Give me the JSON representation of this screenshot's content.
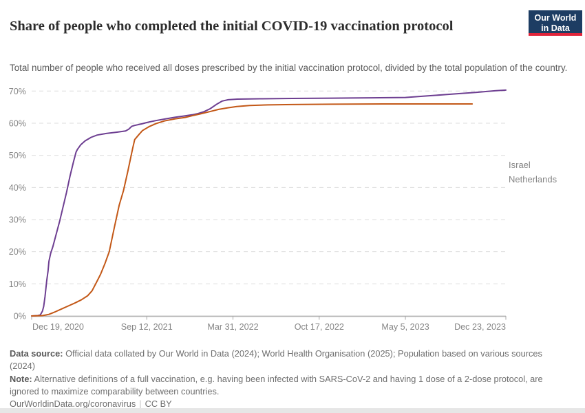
{
  "header": {
    "title": "Share of people who completed the initial COVID-19 vaccination protocol",
    "subtitle": "Total number of people who received all doses prescribed by the initial vaccination protocol, divided by the total population of the country.",
    "logo": {
      "line1": "Our World",
      "line2": "in Data",
      "bg_color": "#1d3d63",
      "accent_color": "#e0243a"
    }
  },
  "chart_data": {
    "type": "line",
    "title": "Share of people who completed the initial COVID-19 vaccination protocol",
    "grid": "dashed-horizontal",
    "legend_position": "right-of-line-ends",
    "x_axis": {
      "start_date": "Dec 19, 2020",
      "end_date": "Dec 23, 2023",
      "total_days": 1100,
      "ticks": [
        {
          "label": "Dec 19, 2020",
          "day": 0
        },
        {
          "label": "Sep 12, 2021",
          "day": 267
        },
        {
          "label": "Mar 31, 2022",
          "day": 467
        },
        {
          "label": "Oct 17, 2022",
          "day": 667
        },
        {
          "label": "May 5, 2023",
          "day": 867
        },
        {
          "label": "Dec 23, 2023",
          "day": 1100
        }
      ]
    },
    "y_axis": {
      "min": 0,
      "max": 70,
      "unit": "%",
      "ticks": [
        {
          "value": 0,
          "label": "0%"
        },
        {
          "value": 10,
          "label": "10%"
        },
        {
          "value": 20,
          "label": "20%"
        },
        {
          "value": 30,
          "label": "30%"
        },
        {
          "value": 40,
          "label": "40%"
        },
        {
          "value": 50,
          "label": "50%"
        },
        {
          "value": 60,
          "label": "60%"
        },
        {
          "value": 70,
          "label": "70%"
        }
      ]
    },
    "series": [
      {
        "name": "Israel",
        "color": "#6d3e91",
        "points": [
          [
            0,
            0
          ],
          [
            14,
            0.1
          ],
          [
            20,
            0.3
          ],
          [
            25,
            1.5
          ],
          [
            28,
            3
          ],
          [
            31,
            6
          ],
          [
            35,
            11
          ],
          [
            38,
            14
          ],
          [
            40,
            17
          ],
          [
            44,
            19.5
          ],
          [
            49,
            21.5
          ],
          [
            57,
            25.5
          ],
          [
            65,
            29.5
          ],
          [
            73,
            34
          ],
          [
            81,
            38.5
          ],
          [
            89,
            43.5
          ],
          [
            97,
            48
          ],
          [
            103,
            51
          ],
          [
            106,
            51.8
          ],
          [
            114,
            53.3
          ],
          [
            124,
            54.5
          ],
          [
            138,
            55.6
          ],
          [
            152,
            56.3
          ],
          [
            173,
            56.8
          ],
          [
            198,
            57.2
          ],
          [
            218,
            57.6
          ],
          [
            225,
            58.1
          ],
          [
            232,
            59
          ],
          [
            239,
            59.3
          ],
          [
            256,
            59.8
          ],
          [
            267,
            60.2
          ],
          [
            288,
            60.8
          ],
          [
            309,
            61.3
          ],
          [
            330,
            61.8
          ],
          [
            351,
            62.2
          ],
          [
            372,
            62.6
          ],
          [
            386,
            63
          ],
          [
            400,
            63.6
          ],
          [
            414,
            64.5
          ],
          [
            428,
            65.8
          ],
          [
            442,
            66.9
          ],
          [
            456,
            67.3
          ],
          [
            477,
            67.5
          ],
          [
            529,
            67.6
          ],
          [
            604,
            67.7
          ],
          [
            696,
            67.8
          ],
          [
            788,
            67.9
          ],
          [
            867,
            68
          ],
          [
            908,
            68.4
          ],
          [
            969,
            69
          ],
          [
            1030,
            69.6
          ],
          [
            1077,
            70.1
          ],
          [
            1100,
            70.3
          ]
        ]
      },
      {
        "name": "Netherlands",
        "color": "#c35817",
        "points": [
          [
            0,
            0
          ],
          [
            25,
            0.1
          ],
          [
            40,
            0.5
          ],
          [
            55,
            1.3
          ],
          [
            70,
            2.2
          ],
          [
            85,
            3.1
          ],
          [
            100,
            4
          ],
          [
            115,
            5
          ],
          [
            130,
            6.3
          ],
          [
            140,
            7.8
          ],
          [
            150,
            10.4
          ],
          [
            160,
            13
          ],
          [
            170,
            16.3
          ],
          [
            180,
            20
          ],
          [
            192,
            27.7
          ],
          [
            203,
            34.5
          ],
          [
            213,
            39
          ],
          [
            223,
            45
          ],
          [
            234,
            52
          ],
          [
            239,
            54.9
          ],
          [
            249,
            56.5
          ],
          [
            257,
            57.7
          ],
          [
            272,
            58.9
          ],
          [
            289,
            59.9
          ],
          [
            308,
            60.7
          ],
          [
            331,
            61.3
          ],
          [
            356,
            61.8
          ],
          [
            372,
            62.3
          ],
          [
            392,
            62.9
          ],
          [
            413,
            63.6
          ],
          [
            434,
            64.3
          ],
          [
            455,
            64.8
          ],
          [
            476,
            65.2
          ],
          [
            506,
            65.5
          ],
          [
            548,
            65.7
          ],
          [
            604,
            65.8
          ],
          [
            696,
            65.9
          ],
          [
            816,
            66
          ],
          [
            1022,
            66
          ]
        ]
      }
    ]
  },
  "footer": {
    "data_source_label": "Data source:",
    "data_source_text": " Official data collated by Our World in Data (2024); World Health Organisation (2025); Population based on various sources (2024)",
    "note_label": "Note:",
    "note_text": " Alternative definitions of a full vaccination, e.g. having been infected with SARS-CoV-2 and having 1 dose of a 2-dose protocol, are ignored to maximize comparability between countries.",
    "url": "OurWorldinData.org/coronavirus",
    "separator": "|",
    "license": "CC BY"
  }
}
